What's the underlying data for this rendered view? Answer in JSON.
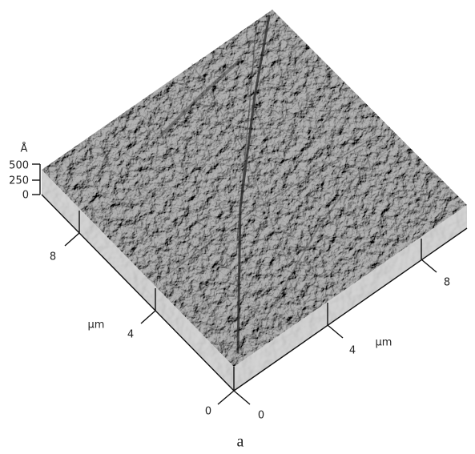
{
  "z_axis": {
    "unit": "Å",
    "ticks": [
      "500",
      "250",
      "0"
    ]
  },
  "left_axis": {
    "unit": "µm",
    "ticks": [
      "0",
      "4",
      "8"
    ]
  },
  "right_axis": {
    "unit": "µm",
    "ticks": [
      "0",
      "4",
      "8"
    ]
  },
  "caption": "a"
}
